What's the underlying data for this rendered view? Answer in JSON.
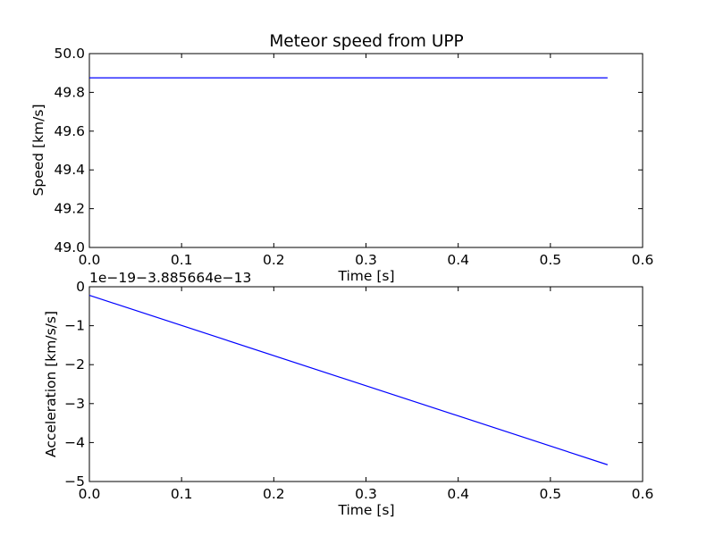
{
  "chart_data": [
    {
      "type": "line",
      "title": "Meteor speed from  UPP",
      "xlabel": "Time [s]",
      "ylabel": "Speed [km/s]",
      "xlim": [
        0.0,
        0.6
      ],
      "ylim": [
        49.0,
        50.0
      ],
      "xticks": [
        0.0,
        0.1,
        0.2,
        0.3,
        0.4,
        0.5,
        0.6
      ],
      "xtick_labels": [
        "0.0",
        "0.1",
        "0.2",
        "0.3",
        "0.4",
        "0.5",
        "0.6"
      ],
      "yticks": [
        49.0,
        49.2,
        49.4,
        49.6,
        49.8,
        50.0
      ],
      "ytick_labels": [
        "49.0",
        "49.2",
        "49.4",
        "49.6",
        "49.8",
        "50.0"
      ],
      "grid": false,
      "series": [
        {
          "color": "#0000ff",
          "x": [
            0.0,
            0.562
          ],
          "y": [
            49.875,
            49.875
          ]
        }
      ]
    },
    {
      "type": "line",
      "title": "",
      "offset_text": "1e−19−3.885664e−13",
      "xlabel": "Time [s]",
      "ylabel": "Acceleration [km/s/s]",
      "xlim": [
        0.0,
        0.6
      ],
      "ylim": [
        -5,
        0
      ],
      "xticks": [
        0.0,
        0.1,
        0.2,
        0.3,
        0.4,
        0.5,
        0.6
      ],
      "xtick_labels": [
        "0.0",
        "0.1",
        "0.2",
        "0.3",
        "0.4",
        "0.5",
        "0.6"
      ],
      "yticks": [
        -5,
        -4,
        -3,
        -2,
        -1,
        0
      ],
      "ytick_labels": [
        "−5",
        "−4",
        "−3",
        "−2",
        "−1",
        "0"
      ],
      "grid": false,
      "series": [
        {
          "color": "#0000ff",
          "x": [
            0.0,
            0.562
          ],
          "y": [
            -0.22,
            -4.57
          ]
        }
      ]
    }
  ]
}
